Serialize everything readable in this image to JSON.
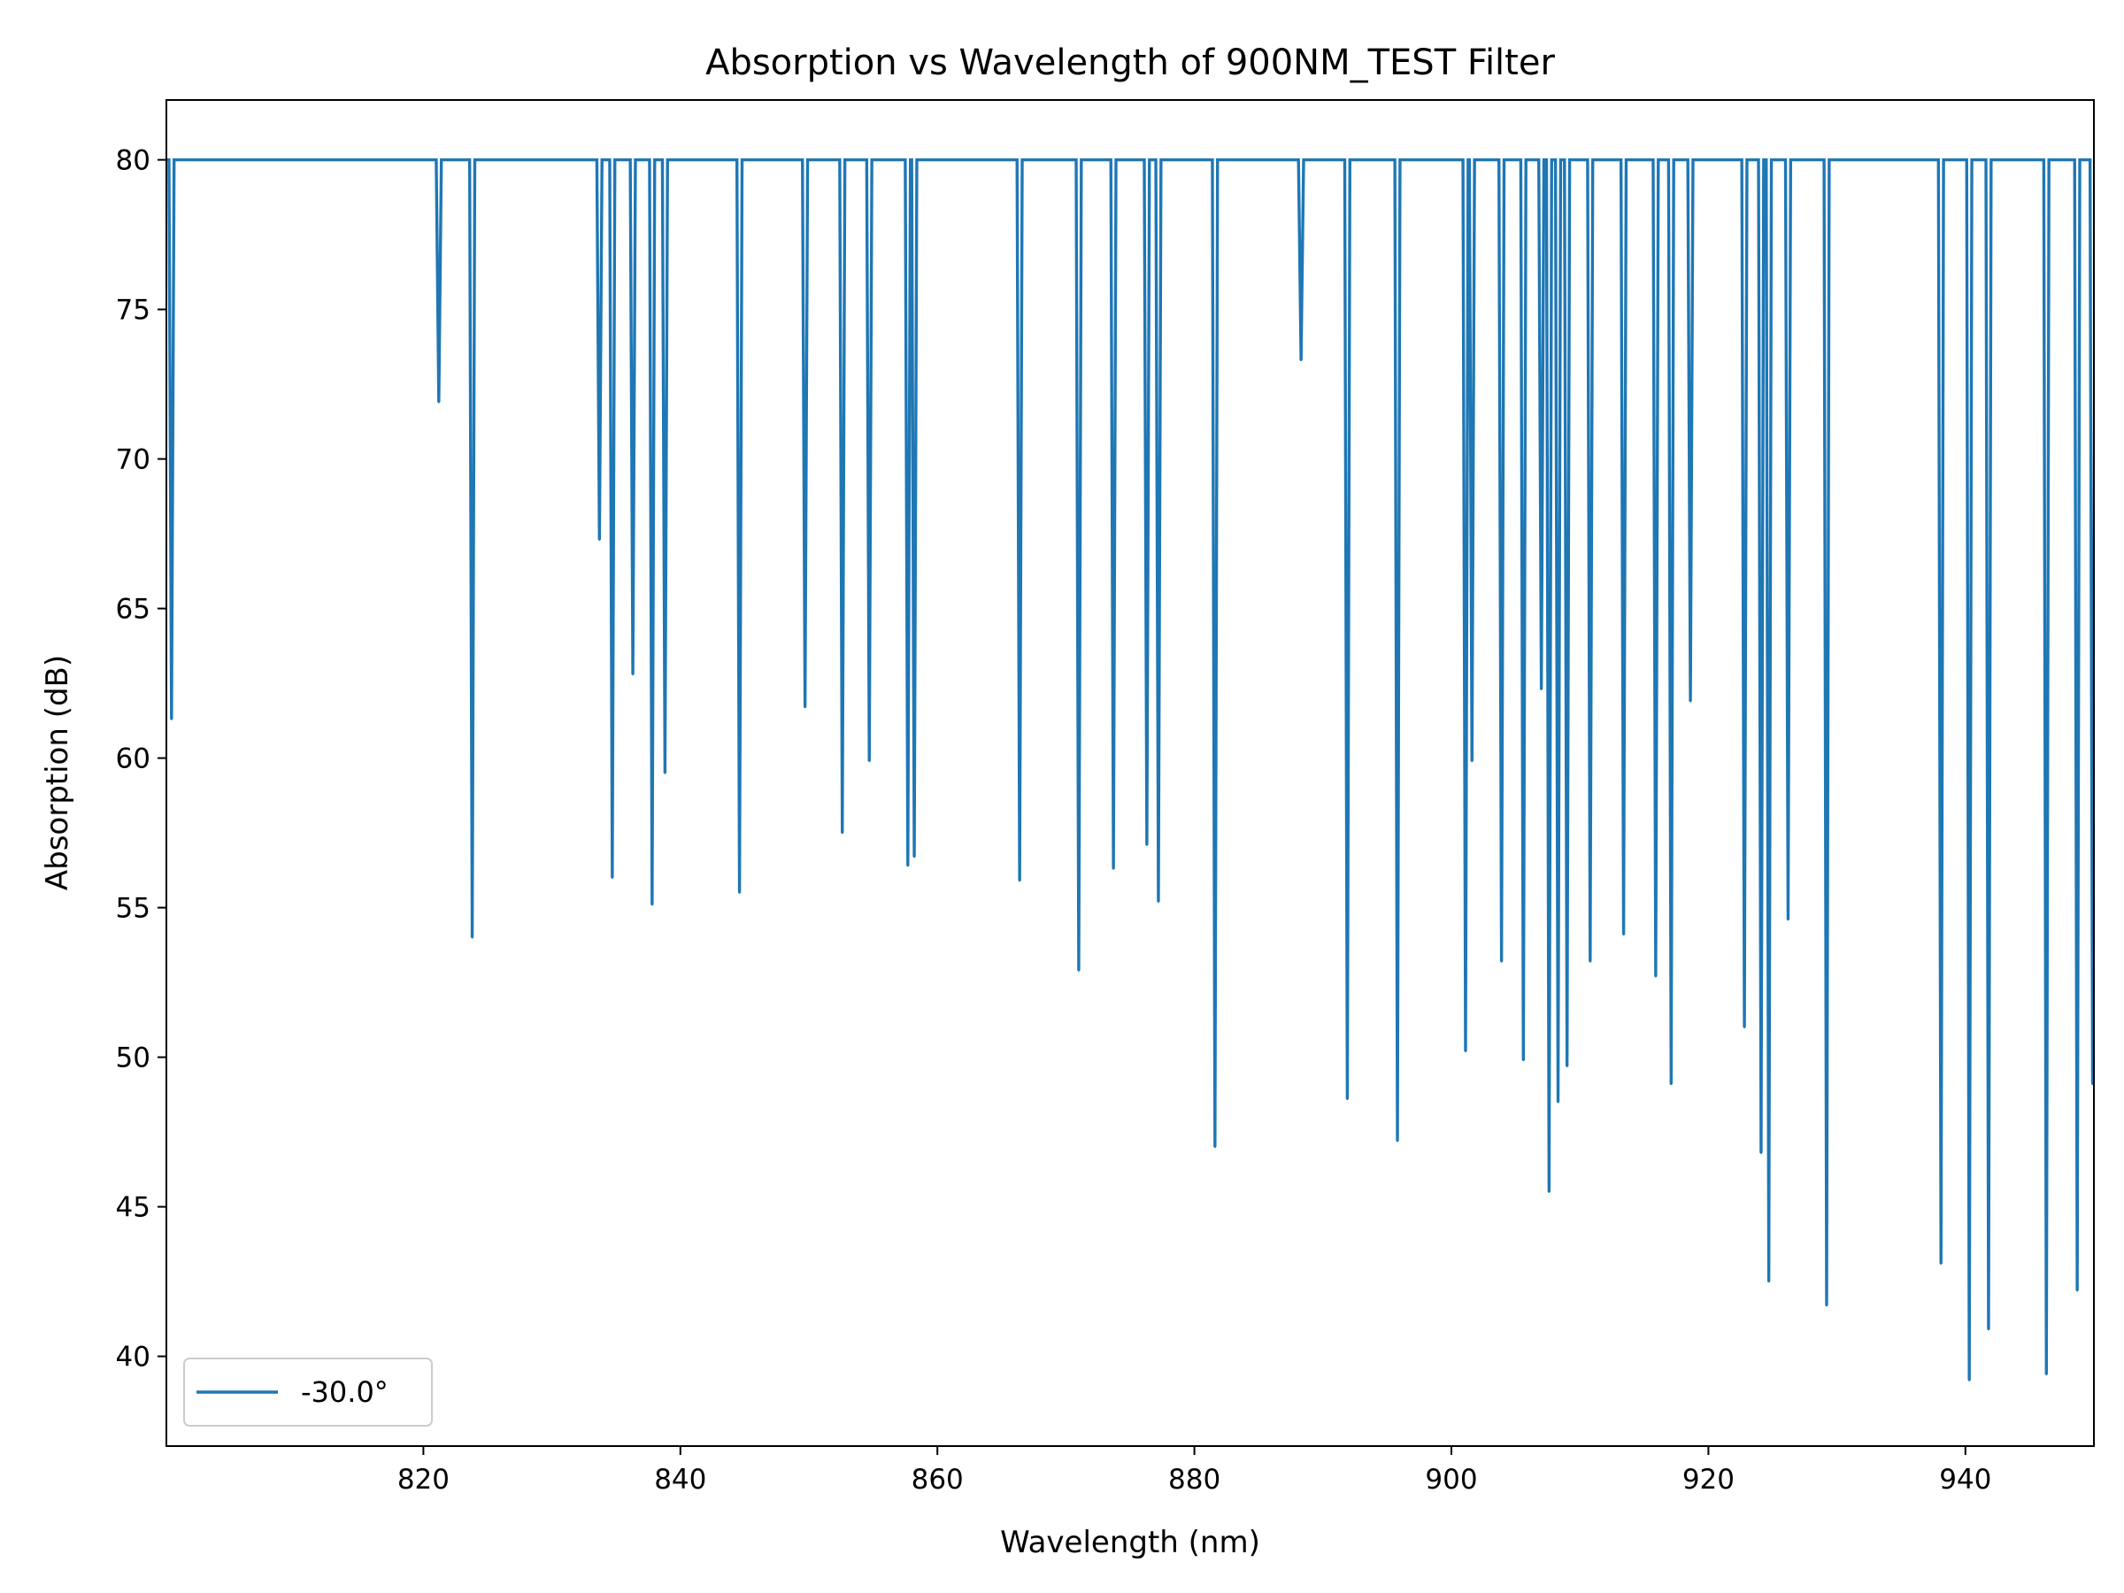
{
  "chart_data": {
    "type": "line",
    "title": "Absorption vs Wavelength of 900NM_TEST Filter",
    "xlabel": "Wavelength (nm)",
    "ylabel": "Absorption (dB)",
    "xlim": [
      800,
      950
    ],
    "ylim": [
      37,
      82
    ],
    "xticks": [
      820,
      840,
      860,
      880,
      900,
      920,
      940
    ],
    "yticks": [
      40,
      45,
      50,
      55,
      60,
      65,
      70,
      75,
      80
    ],
    "xtick_labels": [
      "820",
      "840",
      "860",
      "880",
      "900",
      "920",
      "940"
    ],
    "ytick_labels": [
      "40",
      "45",
      "50",
      "55",
      "60",
      "65",
      "70",
      "75",
      "80"
    ],
    "grid": false,
    "legend_position": "lower-left",
    "baseline": 80,
    "series": [
      {
        "name": "-30.0°",
        "color": "#1f77b4",
        "dips": [
          [
            800.4,
            61.3
          ],
          [
            821.2,
            71.9
          ],
          [
            823.8,
            54.0
          ],
          [
            833.7,
            67.3
          ],
          [
            834.7,
            56.0
          ],
          [
            836.3,
            62.8
          ],
          [
            837.8,
            55.1
          ],
          [
            838.8,
            59.5
          ],
          [
            844.6,
            55.5
          ],
          [
            849.7,
            61.7
          ],
          [
            852.6,
            57.5
          ],
          [
            854.7,
            59.9
          ],
          [
            857.7,
            56.4
          ],
          [
            858.2,
            56.7
          ],
          [
            866.4,
            55.9
          ],
          [
            871.0,
            52.9
          ],
          [
            873.7,
            56.3
          ],
          [
            876.3,
            57.1
          ],
          [
            877.2,
            55.2
          ],
          [
            881.6,
            47.0
          ],
          [
            888.3,
            73.3
          ],
          [
            891.9,
            48.6
          ],
          [
            895.8,
            47.2
          ],
          [
            901.1,
            50.2
          ],
          [
            901.6,
            59.9
          ],
          [
            903.9,
            53.2
          ],
          [
            905.6,
            49.9
          ],
          [
            907.0,
            62.3
          ],
          [
            907.6,
            45.5
          ],
          [
            908.3,
            48.5
          ],
          [
            909.0,
            49.7
          ],
          [
            910.8,
            53.2
          ],
          [
            913.4,
            54.1
          ],
          [
            915.9,
            52.7
          ],
          [
            917.1,
            49.1
          ],
          [
            918.6,
            61.9
          ],
          [
            922.8,
            51.0
          ],
          [
            924.1,
            46.8
          ],
          [
            924.7,
            42.5
          ],
          [
            926.2,
            54.6
          ],
          [
            929.2,
            41.7
          ],
          [
            938.1,
            43.1
          ],
          [
            940.3,
            39.2
          ],
          [
            941.8,
            40.9
          ],
          [
            946.3,
            39.4
          ],
          [
            948.7,
            42.2
          ],
          [
            949.9,
            49.1
          ]
        ]
      }
    ]
  }
}
